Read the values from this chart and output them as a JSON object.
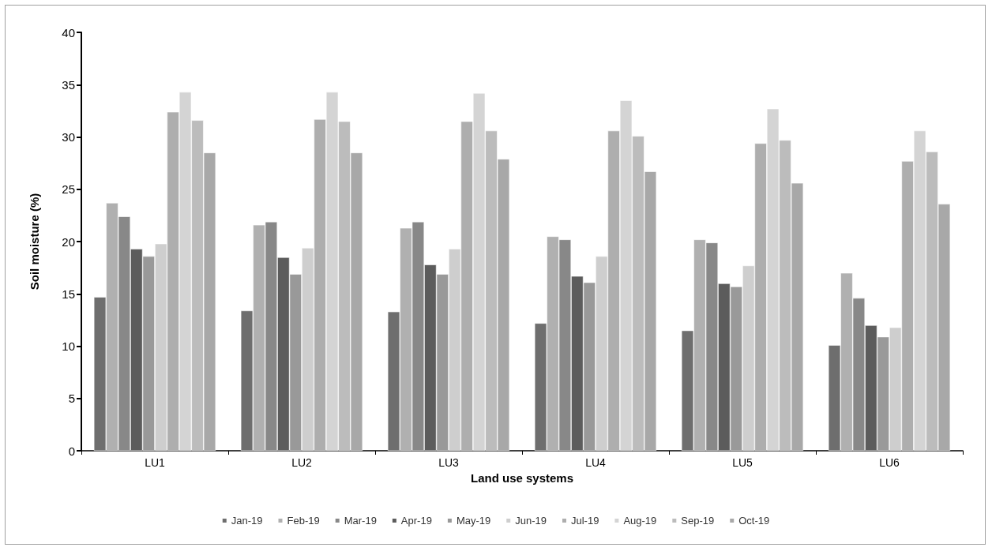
{
  "chart_data": {
    "type": "bar",
    "xlabel": "Land use systems",
    "ylabel": "Soil moisture (%)",
    "categories": [
      "LU1",
      "LU2",
      "LU3",
      "LU4",
      "LU5",
      "LU6"
    ],
    "series": [
      {
        "name": "Jan-19",
        "color": "#6e6e6e",
        "values": [
          14.7,
          13.4,
          13.3,
          12.2,
          11.5,
          10.1
        ]
      },
      {
        "name": "Feb-19",
        "color": "#b0b0b0",
        "values": [
          23.7,
          21.6,
          21.3,
          20.5,
          20.2,
          17.0
        ]
      },
      {
        "name": "Mar-19",
        "color": "#888888",
        "values": [
          22.4,
          21.9,
          21.9,
          20.2,
          19.9,
          14.6
        ]
      },
      {
        "name": "Apr-19",
        "color": "#5c5c5c",
        "values": [
          19.3,
          18.5,
          17.8,
          16.7,
          16.0,
          12.0
        ]
      },
      {
        "name": "May-19",
        "color": "#999999",
        "values": [
          18.6,
          16.9,
          16.9,
          16.1,
          15.7,
          10.9
        ]
      },
      {
        "name": "Jun-19",
        "color": "#cecece",
        "values": [
          19.8,
          19.4,
          19.3,
          18.6,
          17.7,
          11.8
        ]
      },
      {
        "name": "Jul-19",
        "color": "#aeaeae",
        "values": [
          32.4,
          31.7,
          31.5,
          30.6,
          29.4,
          27.7
        ]
      },
      {
        "name": "Aug-19",
        "color": "#d4d4d4",
        "values": [
          34.3,
          34.3,
          34.2,
          33.5,
          32.7,
          30.6
        ]
      },
      {
        "name": "Sep-19",
        "color": "#bcbcbc",
        "values": [
          31.6,
          31.5,
          30.6,
          30.1,
          29.7,
          28.6
        ]
      },
      {
        "name": "Oct-19",
        "color": "#a8a8a8",
        "values": [
          28.5,
          28.5,
          27.9,
          26.7,
          25.6,
          23.6
        ]
      }
    ],
    "ylim": [
      0,
      40
    ],
    "yticks": [
      0,
      5,
      10,
      15,
      20,
      25,
      30,
      35,
      40
    ],
    "grid": false,
    "legend": "bottom"
  }
}
